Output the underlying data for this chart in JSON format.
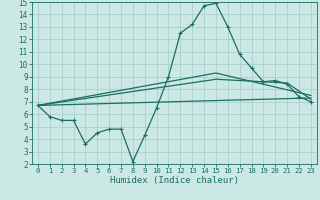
{
  "xlabel": "Humidex (Indice chaleur)",
  "xlim": [
    -0.5,
    23.5
  ],
  "ylim": [
    2,
    15
  ],
  "xticks": [
    0,
    1,
    2,
    3,
    4,
    5,
    6,
    7,
    8,
    9,
    10,
    11,
    12,
    13,
    14,
    15,
    16,
    17,
    18,
    19,
    20,
    21,
    22,
    23
  ],
  "yticks": [
    2,
    3,
    4,
    5,
    6,
    7,
    8,
    9,
    10,
    11,
    12,
    13,
    14,
    15
  ],
  "bg_color": "#cce8e4",
  "line_color": "#1a6e64",
  "grid_color": "#aacfcb",
  "line1_x": [
    0,
    1,
    2,
    3,
    4,
    5,
    6,
    7,
    8,
    9,
    10,
    11,
    12,
    13,
    14,
    15,
    16,
    17,
    18,
    19,
    20,
    21,
    22,
    23
  ],
  "line1_y": [
    6.7,
    5.8,
    5.5,
    5.5,
    3.6,
    4.5,
    4.8,
    4.8,
    2.2,
    4.3,
    6.5,
    9.0,
    12.5,
    13.2,
    14.7,
    14.9,
    13.0,
    10.8,
    9.7,
    8.6,
    8.7,
    8.4,
    7.4,
    7.0
  ],
  "line2_x": [
    0,
    23
  ],
  "line2_y": [
    6.7,
    7.3
  ],
  "line3_x": [
    0,
    15,
    23
  ],
  "line3_y": [
    6.7,
    9.3,
    7.5
  ],
  "line4_x": [
    0,
    15,
    21,
    23
  ],
  "line4_y": [
    6.7,
    8.8,
    8.5,
    7.2
  ]
}
